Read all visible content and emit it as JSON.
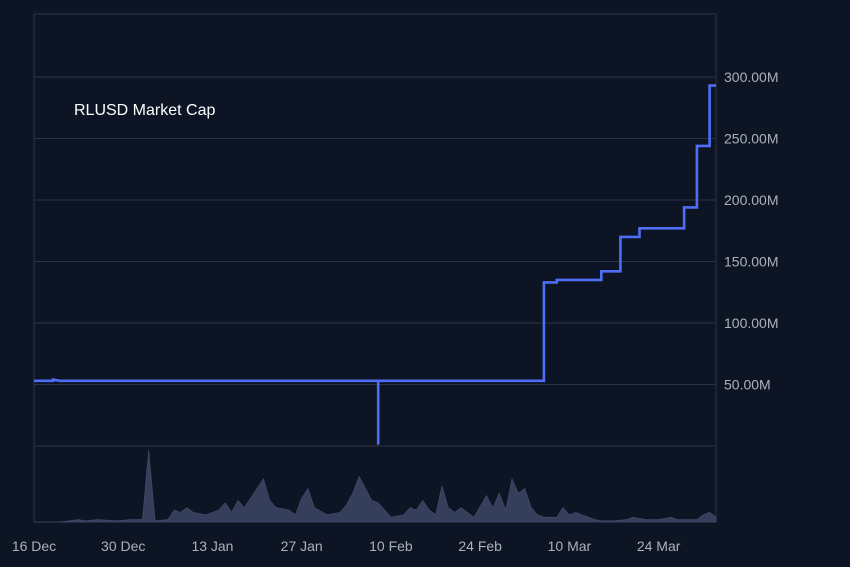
{
  "chart_data": {
    "type": "line",
    "title": "RLUSD Market Cap",
    "xlabel": "",
    "ylabel": "",
    "y_unit": "USD",
    "x_start": "2024-12-16",
    "x_end": "2025-04-02",
    "ylim": [
      0,
      350000000
    ],
    "grid": "horizontal",
    "colors": {
      "background": "#0d1423",
      "line": "#4f6ef7",
      "grid": "#2a3347",
      "volume": "#3a4463",
      "text": "#aab1bf",
      "title": "#ffffff"
    },
    "x_tick_labels": [
      {
        "date": "2024-12-16",
        "label": "16 Dec"
      },
      {
        "date": "2024-12-30",
        "label": "30 Dec"
      },
      {
        "date": "2025-01-13",
        "label": "13 Jan"
      },
      {
        "date": "2025-01-27",
        "label": "27 Jan"
      },
      {
        "date": "2025-02-10",
        "label": "10 Feb"
      },
      {
        "date": "2025-02-24",
        "label": "24 Feb"
      },
      {
        "date": "2025-03-10",
        "label": "10 Mar"
      },
      {
        "date": "2025-03-24",
        "label": "24 Mar"
      }
    ],
    "y_ticks": [
      {
        "value": 50000000,
        "label": "50.00M"
      },
      {
        "value": 100000000,
        "label": "100.00M"
      },
      {
        "value": 150000000,
        "label": "150.00M"
      },
      {
        "value": 200000000,
        "label": "200.00M"
      },
      {
        "value": 250000000,
        "label": "250.00M"
      },
      {
        "value": 300000000,
        "label": "300.00M"
      }
    ],
    "series": [
      {
        "points": [
          [
            "2024-12-16",
            53000000
          ],
          [
            "2024-12-19",
            53000000
          ],
          [
            "2024-12-19",
            54000000
          ],
          [
            "2024-12-20",
            53000000
          ],
          [
            "2025-02-08",
            53000000
          ],
          [
            "2025-02-08",
            1000000
          ],
          [
            "2025-02-08",
            53000000
          ],
          [
            "2025-03-06",
            53000000
          ],
          [
            "2025-03-06",
            133000000
          ],
          [
            "2025-03-08",
            133000000
          ],
          [
            "2025-03-08",
            135000000
          ],
          [
            "2025-03-15",
            135000000
          ],
          [
            "2025-03-15",
            142000000
          ],
          [
            "2025-03-18",
            142000000
          ],
          [
            "2025-03-18",
            170000000
          ],
          [
            "2025-03-21",
            170000000
          ],
          [
            "2025-03-21",
            177000000
          ],
          [
            "2025-03-28",
            177000000
          ],
          [
            "2025-03-28",
            194000000
          ],
          [
            "2025-03-30",
            194000000
          ],
          [
            "2025-03-30",
            244000000
          ],
          [
            "2025-04-01",
            244000000
          ],
          [
            "2025-04-01",
            293000000
          ],
          [
            "2025-04-02",
            293000000
          ]
        ]
      }
    ],
    "volume": {
      "max": 30,
      "points": [
        [
          "2024-12-16",
          0
        ],
        [
          "2024-12-20",
          0
        ],
        [
          "2024-12-23",
          1
        ],
        [
          "2024-12-24",
          0.5
        ],
        [
          "2024-12-26",
          1
        ],
        [
          "2024-12-29",
          0.5
        ],
        [
          "2024-12-31",
          1
        ],
        [
          "2025-01-02",
          1
        ],
        [
          "2025-01-03",
          30
        ],
        [
          "2025-01-04",
          0.5
        ],
        [
          "2025-01-06",
          1
        ],
        [
          "2025-01-07",
          5
        ],
        [
          "2025-01-08",
          4
        ],
        [
          "2025-01-09",
          6
        ],
        [
          "2025-01-10",
          4
        ],
        [
          "2025-01-12",
          3
        ],
        [
          "2025-01-14",
          5
        ],
        [
          "2025-01-15",
          8
        ],
        [
          "2025-01-16",
          4
        ],
        [
          "2025-01-17",
          9
        ],
        [
          "2025-01-18",
          6
        ],
        [
          "2025-01-20",
          14
        ],
        [
          "2025-01-21",
          18
        ],
        [
          "2025-01-22",
          9
        ],
        [
          "2025-01-23",
          6
        ],
        [
          "2025-01-25",
          5
        ],
        [
          "2025-01-26",
          3
        ],
        [
          "2025-01-27",
          10
        ],
        [
          "2025-01-28",
          14
        ],
        [
          "2025-01-29",
          6
        ],
        [
          "2025-01-31",
          3
        ],
        [
          "2025-02-02",
          4
        ],
        [
          "2025-02-03",
          7
        ],
        [
          "2025-02-04",
          12
        ],
        [
          "2025-02-05",
          19
        ],
        [
          "2025-02-06",
          14
        ],
        [
          "2025-02-07",
          9
        ],
        [
          "2025-02-08",
          8
        ],
        [
          "2025-02-09",
          5
        ],
        [
          "2025-02-10",
          2
        ],
        [
          "2025-02-12",
          3
        ],
        [
          "2025-02-13",
          6
        ],
        [
          "2025-02-14",
          5
        ],
        [
          "2025-02-15",
          9
        ],
        [
          "2025-02-16",
          5
        ],
        [
          "2025-02-17",
          3
        ],
        [
          "2025-02-18",
          15
        ],
        [
          "2025-02-19",
          6
        ],
        [
          "2025-02-20",
          4
        ],
        [
          "2025-02-21",
          6
        ],
        [
          "2025-02-22",
          4
        ],
        [
          "2025-02-23",
          2
        ],
        [
          "2025-02-25",
          11
        ],
        [
          "2025-02-26",
          6
        ],
        [
          "2025-02-27",
          12
        ],
        [
          "2025-02-28",
          5
        ],
        [
          "2025-03-01",
          18
        ],
        [
          "2025-03-02",
          12
        ],
        [
          "2025-03-03",
          14
        ],
        [
          "2025-03-04",
          6
        ],
        [
          "2025-03-05",
          3
        ],
        [
          "2025-03-06",
          2
        ],
        [
          "2025-03-08",
          2
        ],
        [
          "2025-03-09",
          6
        ],
        [
          "2025-03-10",
          3
        ],
        [
          "2025-03-11",
          4
        ],
        [
          "2025-03-13",
          2
        ],
        [
          "2025-03-14",
          1
        ],
        [
          "2025-03-15",
          0.5
        ],
        [
          "2025-03-17",
          0.5
        ],
        [
          "2025-03-19",
          1
        ],
        [
          "2025-03-20",
          2
        ],
        [
          "2025-03-22",
          1
        ],
        [
          "2025-03-24",
          1
        ],
        [
          "2025-03-26",
          2
        ],
        [
          "2025-03-27",
          1
        ],
        [
          "2025-03-29",
          1
        ],
        [
          "2025-03-30",
          1
        ],
        [
          "2025-03-31",
          3
        ],
        [
          "2025-04-01",
          4
        ],
        [
          "2025-04-02",
          2
        ]
      ]
    }
  }
}
